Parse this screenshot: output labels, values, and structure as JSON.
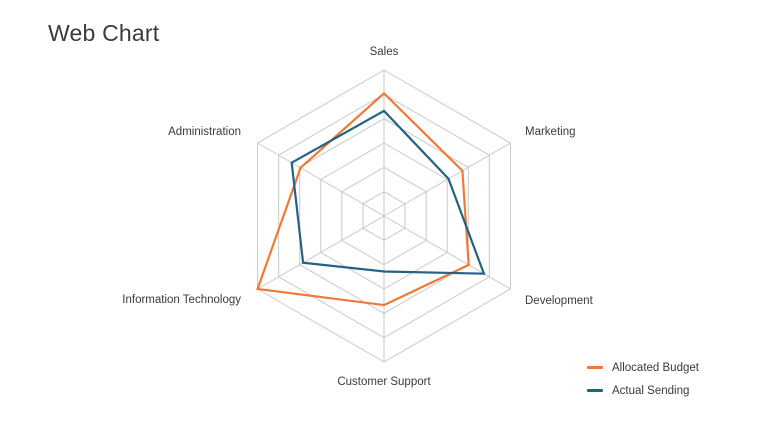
{
  "slide": {
    "title": "Web Chart"
  },
  "chart_data": {
    "type": "radar",
    "categories": [
      "Sales",
      "Marketing",
      "Development",
      "Customer Support",
      "Information Technology",
      "Administration"
    ],
    "rmax": 10,
    "rings": 6,
    "grid": true,
    "legend": "bottom-right",
    "series": [
      {
        "name": "Allocated Budget",
        "color": "#ee7a36",
        "values": [
          8.4,
          6.2,
          6.7,
          6.1,
          10.0,
          6.6
        ]
      },
      {
        "name": "Actual Sending",
        "color": "#246283",
        "values": [
          7.2,
          5.1,
          7.9,
          3.8,
          6.4,
          7.3
        ]
      }
    ]
  }
}
